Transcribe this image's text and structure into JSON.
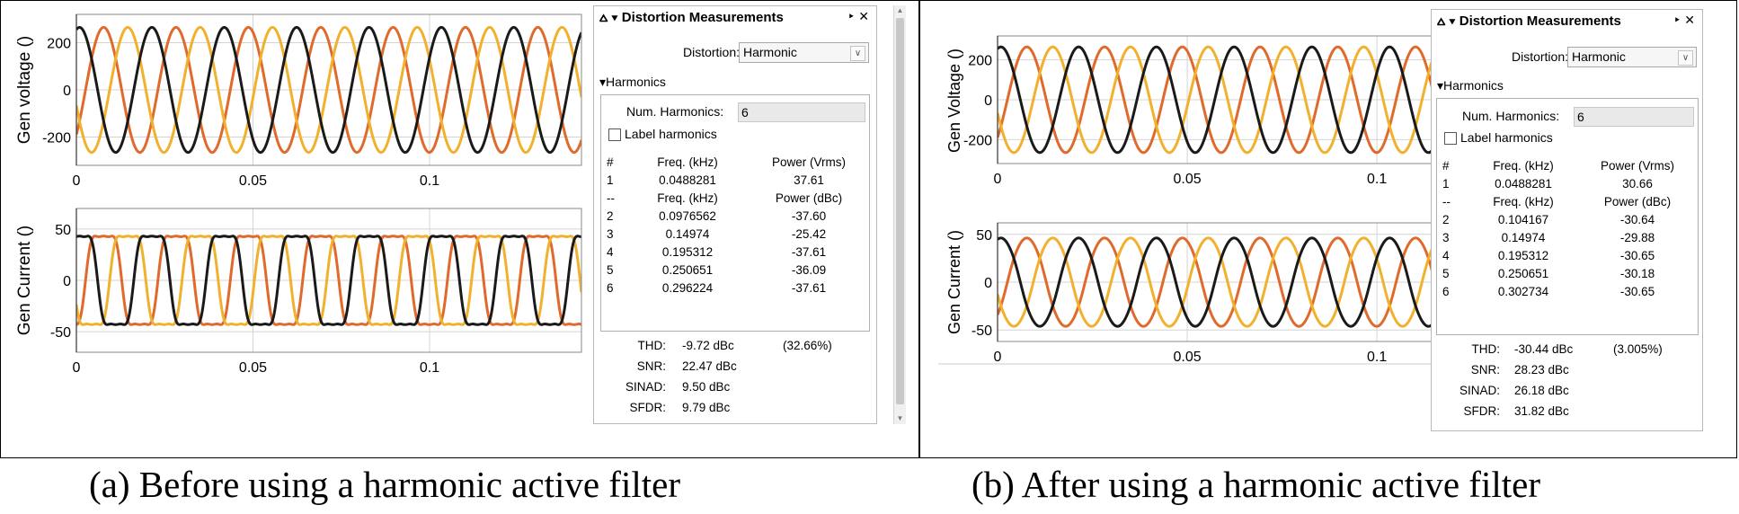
{
  "colors": {
    "phase_a": "#1a1a1a",
    "phase_b": "#e06a2c",
    "phase_c": "#f1b12e",
    "grid": "#d4d4d4",
    "frame": "#000000"
  },
  "panels": [
    {
      "id": "before",
      "caption": "(a) Before using a harmonic active filter",
      "plots": [
        {
          "ylabel": "Gen voltage ()",
          "yticks": [
            "200",
            "0",
            "-200"
          ],
          "ytick_values": [
            200,
            0,
            -200
          ],
          "ylim": [
            -320,
            320
          ],
          "xticks": [
            "0",
            "0.05",
            "0.1"
          ],
          "xtick_values": [
            0,
            0.05,
            0.1
          ],
          "xlim": [
            0,
            0.143
          ],
          "waveform": {
            "amplitude": 265,
            "frequency_hz": 48.8,
            "harmonic_ratio": 0
          }
        },
        {
          "ylabel": "Gen Current ()",
          "yticks": [
            "50",
            "0",
            "-50"
          ],
          "ytick_values": [
            50,
            0,
            -50
          ],
          "ylim": [
            -70,
            70
          ],
          "xticks": [
            "0",
            "0.05",
            "0.1"
          ],
          "xtick_values": [
            0,
            0.05,
            0.1
          ],
          "xlim": [
            0,
            0.143
          ],
          "waveform": {
            "amplitude": 52,
            "frequency_hz": 48.8,
            "harmonic_ratio": 0.3
          }
        }
      ],
      "dm": {
        "title": "Distortion Measurements",
        "pin": "‣ ✕",
        "menu_glyph": "⩟ ▾",
        "distortion_label": "Distortion:",
        "distortion_value": "Harmonic",
        "section": "▾Harmonics",
        "num_harmonics_label": "Num. Harmonics:",
        "num_harmonics_value": "6",
        "label_harmonics": "Label harmonics",
        "head1": {
          "num": "#",
          "freq": "Freq. (kHz)",
          "power": "Power (Vrms)"
        },
        "fund": {
          "num": "1",
          "freq": "0.0488281",
          "power": "37.61"
        },
        "head2": {
          "num": "--",
          "freq": "Freq. (kHz)",
          "power": "Power (dBc)"
        },
        "rows": [
          {
            "num": "2",
            "freq": "0.0976562",
            "power": "-37.60"
          },
          {
            "num": "3",
            "freq": "0.14974",
            "power": "-25.42"
          },
          {
            "num": "4",
            "freq": "0.195312",
            "power": "-37.61"
          },
          {
            "num": "5",
            "freq": "0.250651",
            "power": "-36.09"
          },
          {
            "num": "6",
            "freq": "0.296224",
            "power": "-37.61"
          }
        ],
        "metrics": [
          {
            "label": "THD:",
            "value": "-9.72 dBc",
            "extra": "(32.66%)"
          },
          {
            "label": "SNR:",
            "value": "22.47 dBc",
            "extra": ""
          },
          {
            "label": "SINAD:",
            "value": "9.50 dBc",
            "extra": ""
          },
          {
            "label": "SFDR:",
            "value": "9.79 dBc",
            "extra": ""
          }
        ]
      }
    },
    {
      "id": "after",
      "caption": "(b) After using a harmonic active filter",
      "plots": [
        {
          "ylabel": "Gen Voltage ()",
          "yticks": [
            "200",
            "0",
            "-200"
          ],
          "ytick_values": [
            200,
            0,
            -200
          ],
          "ylim": [
            -320,
            320
          ],
          "xticks": [
            "0",
            "0.05",
            "0.1"
          ],
          "xtick_values": [
            0,
            0.05,
            0.1
          ],
          "xlim": [
            0,
            0.131
          ],
          "waveform": {
            "amplitude": 265,
            "frequency_hz": 48.8,
            "harmonic_ratio": 0
          }
        },
        {
          "ylabel": "Gen Current ()",
          "yticks": [
            "50",
            "0",
            "-50"
          ],
          "ytick_values": [
            50,
            0,
            -50
          ],
          "ylim": [
            -62,
            62
          ],
          "xticks": [
            "0",
            "0.05",
            "0.1"
          ],
          "xtick_values": [
            0,
            0.05,
            0.1
          ],
          "xlim": [
            0,
            0.131
          ],
          "waveform": {
            "amplitude": 47,
            "frequency_hz": 48.8,
            "harmonic_ratio": 0.03
          }
        }
      ],
      "dm": {
        "title": "Distortion Measurements",
        "pin": "‣ ✕",
        "menu_glyph": "⩟ ▾",
        "distortion_label": "Distortion:",
        "distortion_value": "Harmonic",
        "section": "▾Harmonics",
        "num_harmonics_label": "Num. Harmonics:",
        "num_harmonics_value": "6",
        "label_harmonics": "Label harmonics",
        "head1": {
          "num": "#",
          "freq": "Freq. (kHz)",
          "power": "Power (Vrms)"
        },
        "fund": {
          "num": "1",
          "freq": "0.0488281",
          "power": "30.66"
        },
        "head2": {
          "num": "--",
          "freq": "Freq. (kHz)",
          "power": "Power (dBc)"
        },
        "rows": [
          {
            "num": "2",
            "freq": "0.104167",
            "power": "-30.64"
          },
          {
            "num": "3",
            "freq": "0.14974",
            "power": "-29.88"
          },
          {
            "num": "4",
            "freq": "0.195312",
            "power": "-30.65"
          },
          {
            "num": "5",
            "freq": "0.250651",
            "power": "-30.18"
          },
          {
            "num": "6",
            "freq": "0.302734",
            "power": "-30.65"
          }
        ],
        "metrics": [
          {
            "label": "THD:",
            "value": "-30.44 dBc",
            "extra": "(3.005%)"
          },
          {
            "label": "SNR:",
            "value": "28.23 dBc",
            "extra": ""
          },
          {
            "label": "SINAD:",
            "value": "26.18 dBc",
            "extra": ""
          },
          {
            "label": "SFDR:",
            "value": "31.82 dBc",
            "extra": ""
          }
        ]
      }
    }
  ]
}
